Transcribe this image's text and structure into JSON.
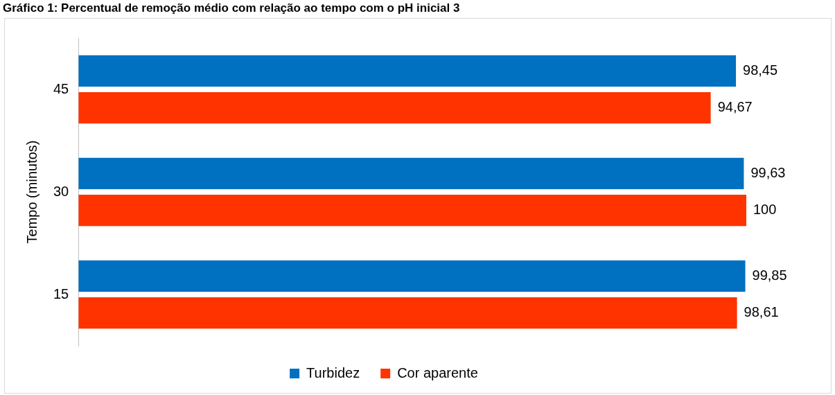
{
  "chart_data": {
    "type": "bar",
    "orientation": "horizontal",
    "title": "Gráfico 1: Percentual de remoção médio com relação ao tempo com o pH inicial 3",
    "ylabel": "Tempo (minutos)",
    "categories": [
      "45",
      "30",
      "15"
    ],
    "series": [
      {
        "name": "Turbidez",
        "color": "#0070c0",
        "values": [
          98.45,
          99.63,
          99.85
        ],
        "value_labels": [
          "98,45",
          "99,63",
          "99,85"
        ]
      },
      {
        "name": "Cor aparente",
        "color": "#ff3300",
        "values": [
          94.67,
          100,
          98.61
        ],
        "value_labels": [
          "94,67",
          "100",
          "98,61"
        ]
      }
    ],
    "tick_labels": "y",
    "grid": false,
    "legend": "bottom"
  }
}
